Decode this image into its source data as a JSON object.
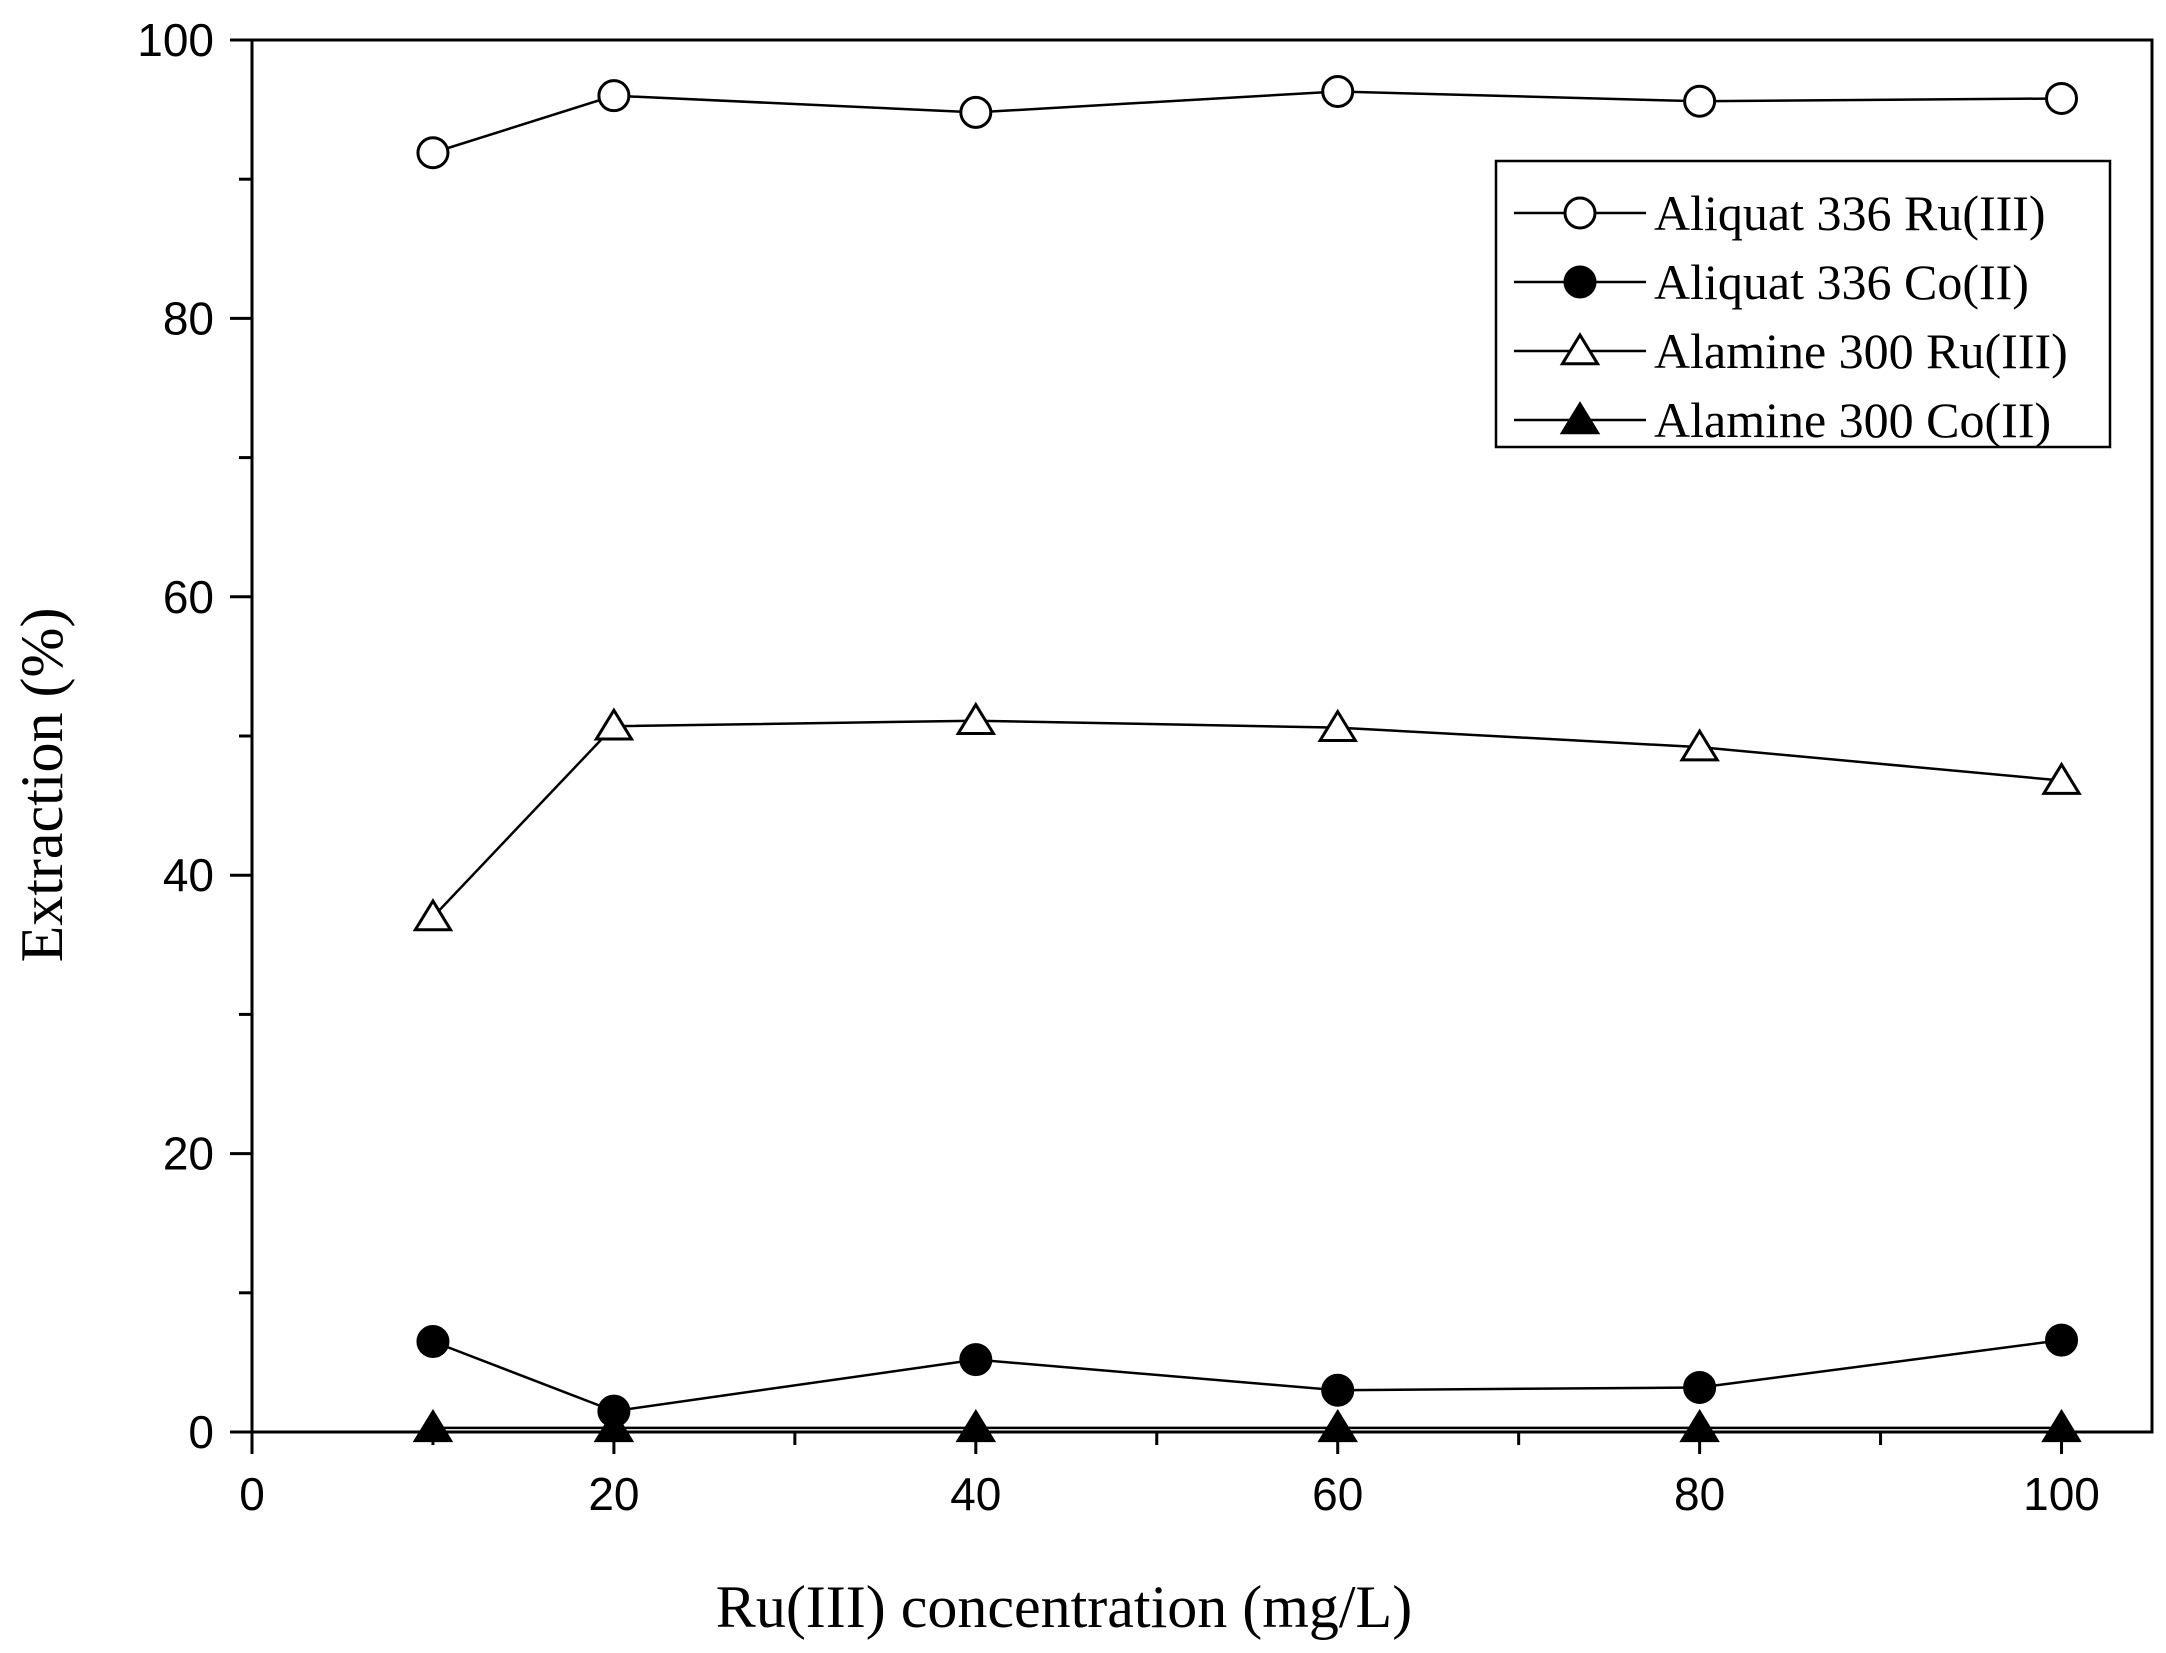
{
  "chart_data": {
    "type": "line",
    "title": "",
    "xlabel": "Ru(III) concentration (mg/L)",
    "ylabel": "Extraction (%)",
    "xlim": [
      0,
      105
    ],
    "ylim": [
      0,
      100
    ],
    "xticks": [
      0,
      20,
      40,
      60,
      80,
      100
    ],
    "yticks": [
      0,
      20,
      40,
      60,
      80,
      100
    ],
    "x_minor_step": 10,
    "y_minor_step": 10,
    "grid": false,
    "legend_position": "top-right",
    "x": [
      10,
      20,
      40,
      60,
      80,
      100
    ],
    "series": [
      {
        "name": "Aliquat 336 Ru(III)",
        "marker": "circle-open",
        "values": [
          91.9,
          96.0,
          94.8,
          96.3,
          95.6,
          95.8
        ]
      },
      {
        "name": "Aliquat 336 Co(II)",
        "marker": "circle-filled",
        "values": [
          6.5,
          1.5,
          5.2,
          3.0,
          3.2,
          6.6
        ]
      },
      {
        "name": "Alamine 300 Ru(III)",
        "marker": "triangle-open",
        "values": [
          37.0,
          50.7,
          51.1,
          50.6,
          49.2,
          46.8
        ]
      },
      {
        "name": "Alamine 300 Co(II)",
        "marker": "triangle-filled",
        "values": [
          0.3,
          0.3,
          0.3,
          0.3,
          0.3,
          0.3
        ]
      }
    ]
  }
}
